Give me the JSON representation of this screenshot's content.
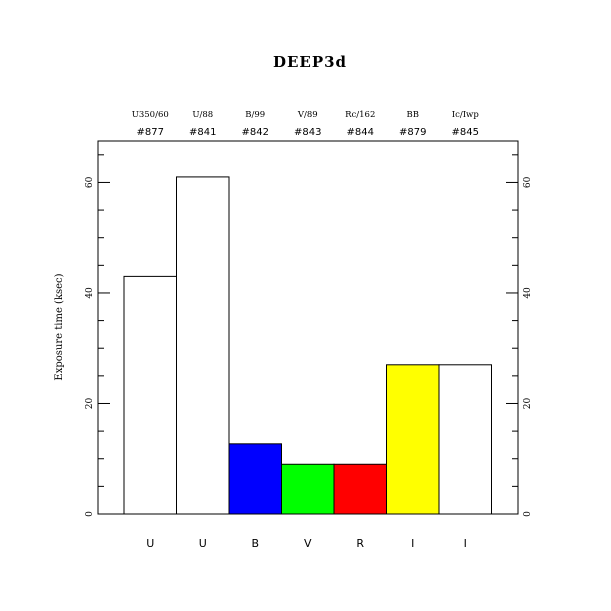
{
  "chart_data": {
    "type": "bar",
    "title": "DEEP3d",
    "ylabel": "Exposure time (ksec)",
    "xlabel": "",
    "ylim": [
      0,
      67.5
    ],
    "yticks": [
      0,
      20,
      40,
      60
    ],
    "categories": [
      "U",
      "U",
      "B",
      "V",
      "R",
      "I",
      "I"
    ],
    "filters": [
      "U350/60",
      "U/88",
      "B/99",
      "V/89",
      "Rc/162",
      "BB",
      "Ic/Iwp"
    ],
    "ids": [
      "#877",
      "#841",
      "#842",
      "#843",
      "#844",
      "#879",
      "#845"
    ],
    "values": [
      43,
      61,
      12.7,
      9,
      9,
      27,
      27
    ],
    "colors": [
      "#ffffff",
      "#ffffff",
      "#0000ff",
      "#00ff00",
      "#ff0000",
      "#ffff00",
      "#ffffff"
    ],
    "grid": false
  }
}
